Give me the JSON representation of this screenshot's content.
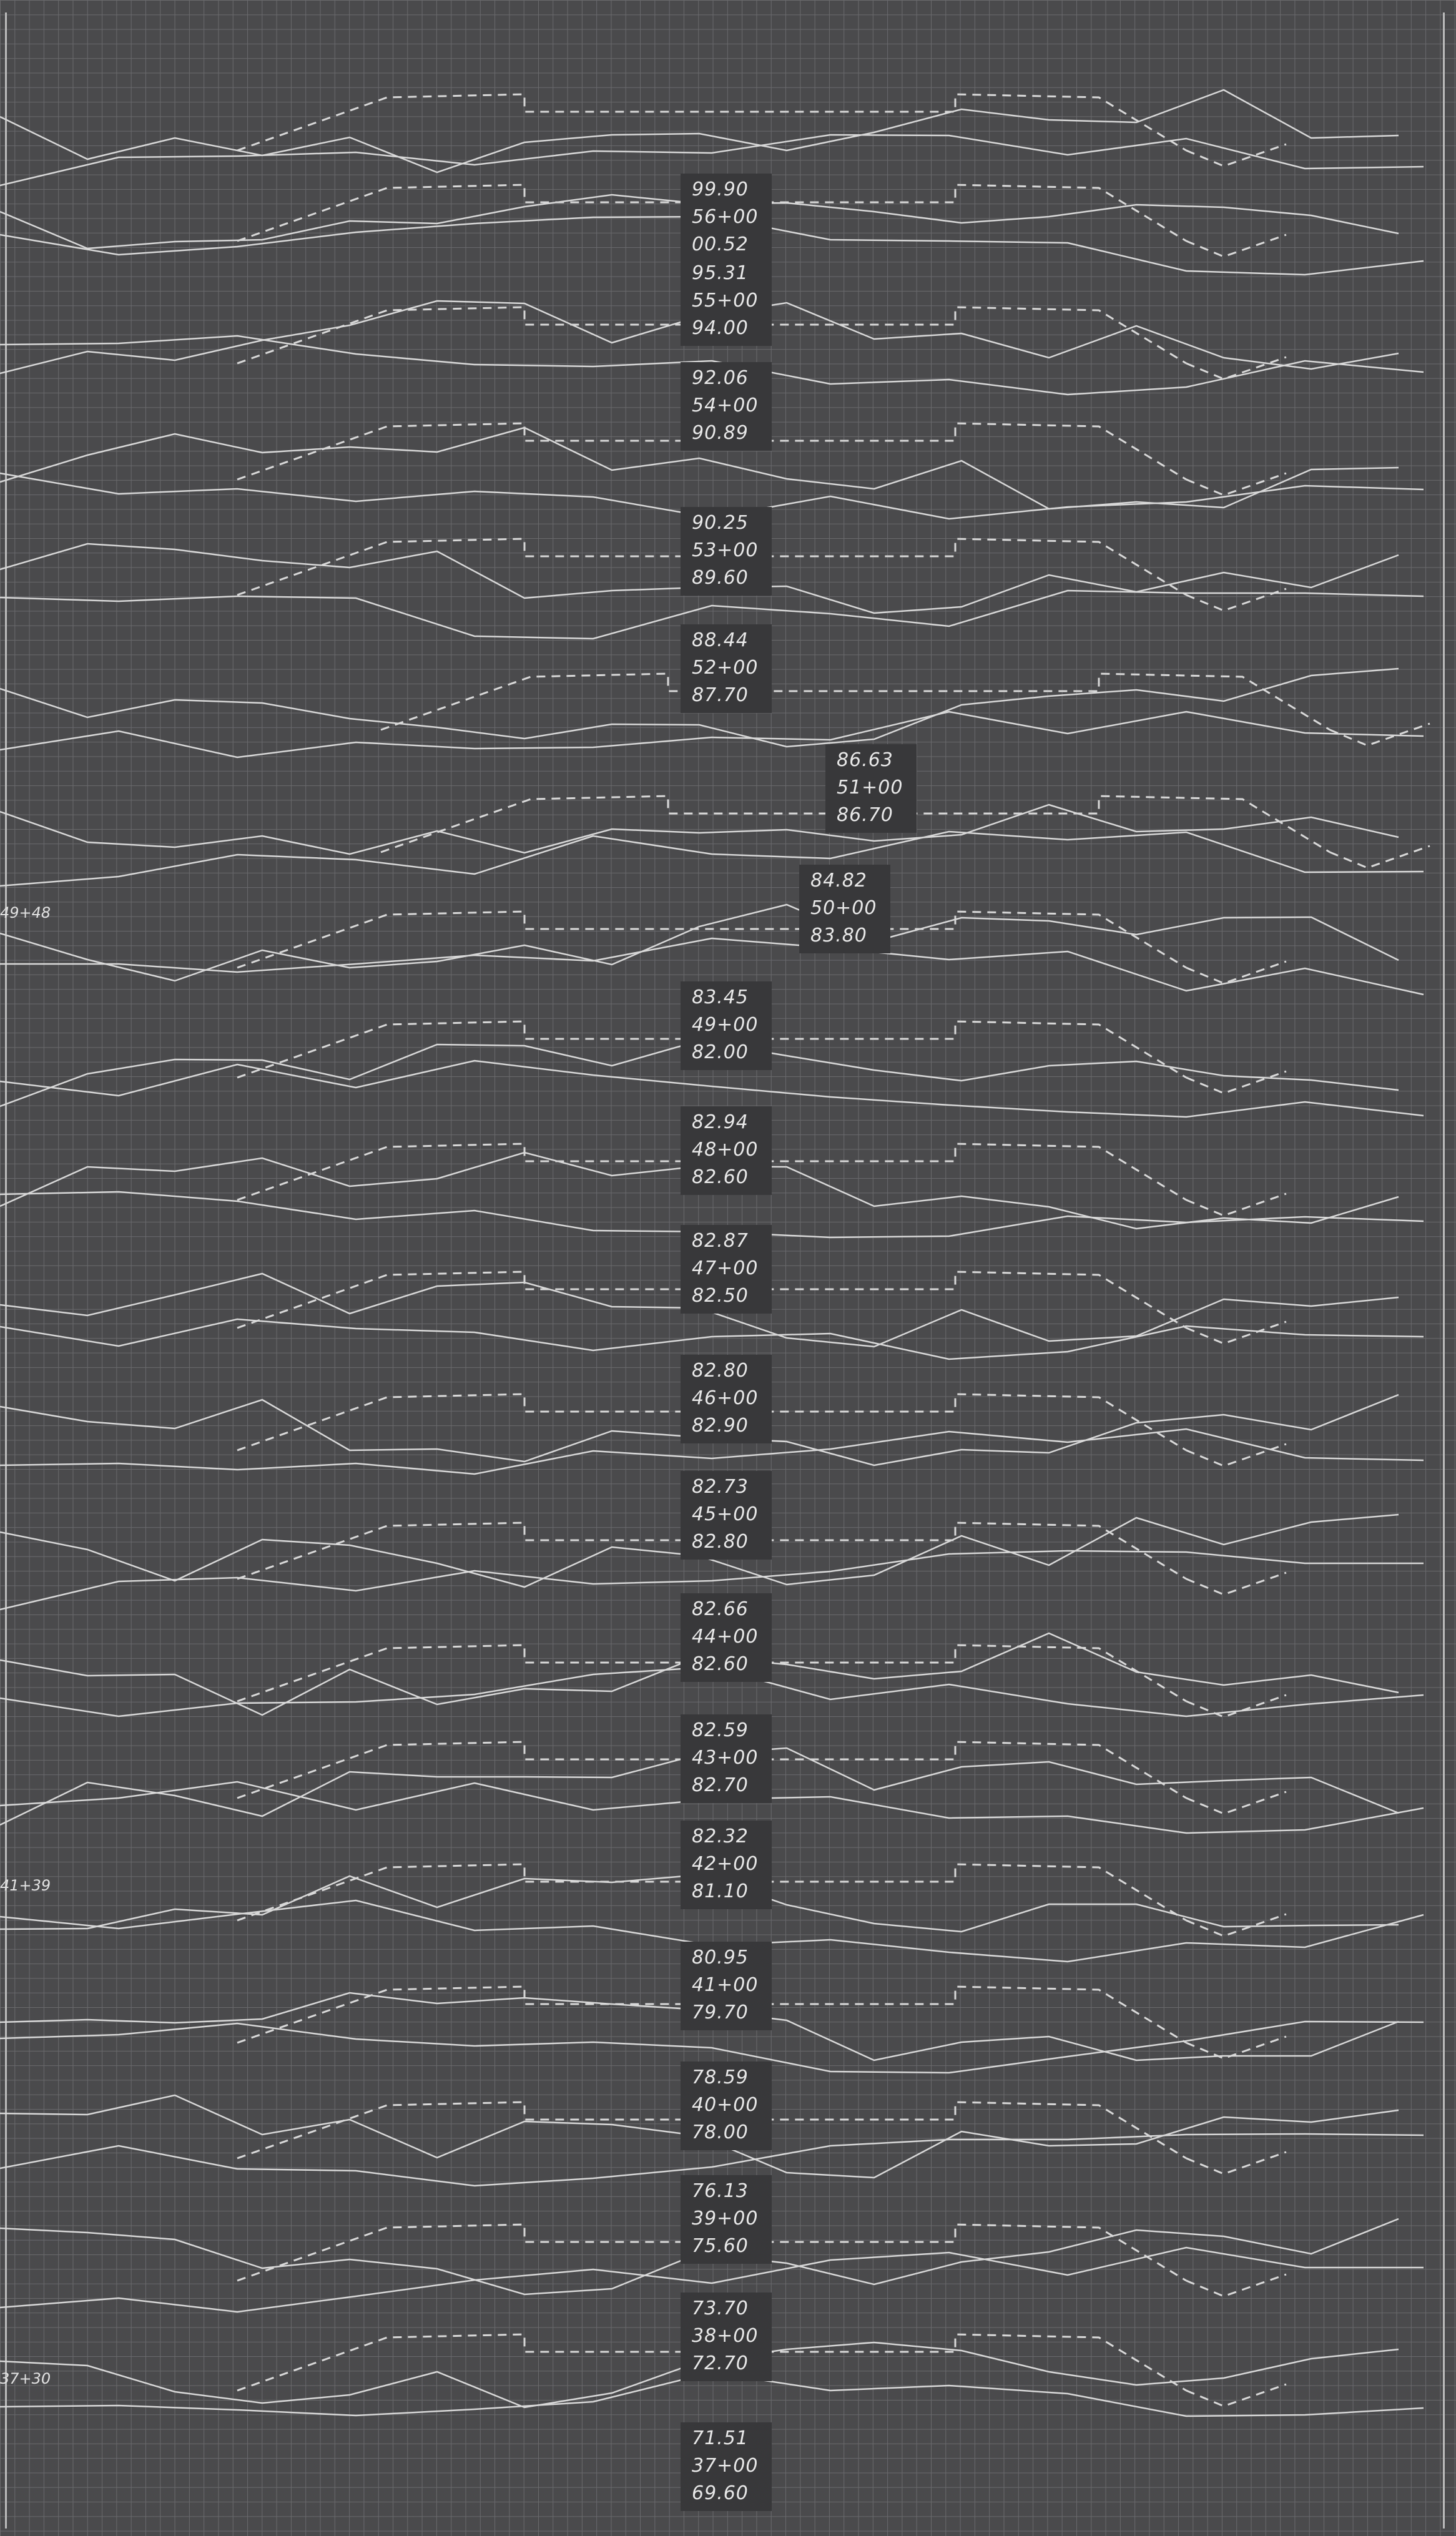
{
  "sections": [
    {
      "elev": "99.90",
      "station": "56+00",
      "ground": "00.52"
    },
    {
      "elev": "95.31",
      "station": "55+00",
      "ground": "94.00"
    },
    {
      "elev": "92.06",
      "station": "54+00",
      "ground": "90.89"
    },
    {
      "elev": "90.25",
      "station": "53+00",
      "ground": "89.60"
    },
    {
      "elev": "88.44",
      "station": "52+00",
      "ground": "87.70"
    },
    {
      "elev": "86.63",
      "station": "51+00",
      "ground": "86.70"
    },
    {
      "elev": "84.82",
      "station": "50+00",
      "ground": "83.80"
    },
    {
      "elev": "83.45",
      "station": "49+00",
      "ground": "82.00"
    },
    {
      "elev": "82.94",
      "station": "48+00",
      "ground": "82.60"
    },
    {
      "elev": "82.87",
      "station": "47+00",
      "ground": "82.50"
    },
    {
      "elev": "82.80",
      "station": "46+00",
      "ground": "82.90"
    },
    {
      "elev": "82.73",
      "station": "45+00",
      "ground": "82.80"
    },
    {
      "elev": "82.66",
      "station": "44+00",
      "ground": "82.60"
    },
    {
      "elev": "82.59",
      "station": "43+00",
      "ground": "82.70"
    },
    {
      "elev": "82.32",
      "station": "42+00",
      "ground": "81.10"
    },
    {
      "elev": "80.95",
      "station": "41+00",
      "ground": "79.70"
    },
    {
      "elev": "78.59",
      "station": "40+00",
      "ground": "78.00"
    },
    {
      "elev": "76.13",
      "station": "39+00",
      "ground": "75.60"
    },
    {
      "elev": "73.70",
      "station": "38+00",
      "ground": "72.70"
    },
    {
      "elev": "71.51",
      "station": "37+00",
      "ground": "69.60"
    }
  ],
  "side_labels": {
    "a": "49+48",
    "b": "41+39",
    "c": "37+30"
  },
  "colors": {
    "paper": "#4a4a4c",
    "grid": "#6a6a6d",
    "line": "#d8d8d8",
    "label_bg": "#38383a"
  }
}
